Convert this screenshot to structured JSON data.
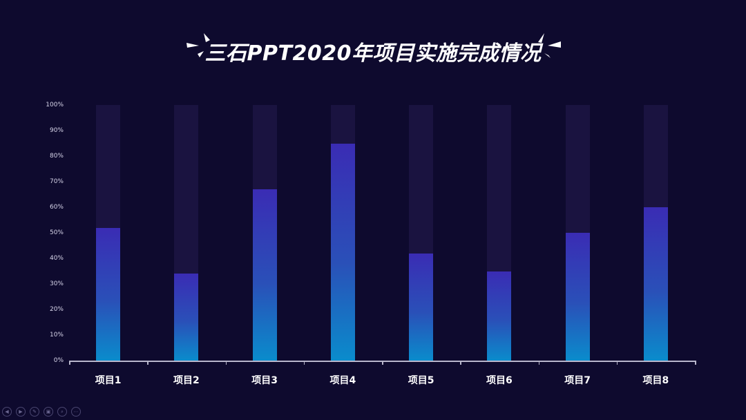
{
  "title": "三石PPT2020年项目实施完成情况",
  "chart_data": {
    "type": "bar",
    "title": "三石PPT2020年项目实施完成情况",
    "categories": [
      "项目1",
      "项目2",
      "项目3",
      "项目4",
      "项目5",
      "项目6",
      "项目7",
      "项目8"
    ],
    "values": [
      52,
      34,
      67,
      85,
      42,
      35,
      50,
      60
    ],
    "xlabel": "",
    "ylabel": "",
    "ylim": [
      0,
      100
    ],
    "y_ticks": [
      "0%",
      "10%",
      "20%",
      "30%",
      "40%",
      "50%",
      "60%",
      "70%",
      "80%",
      "90%",
      "100%"
    ],
    "grid": false,
    "legend": null,
    "background_track_max": 100,
    "colors": {
      "background": "#0e0a2e",
      "track": "#1a1340",
      "bar_gradient_bottom": "#0a8ccc",
      "bar_gradient_top": "#3a2cb4",
      "axis": "#b9b7cc"
    }
  },
  "controls": {
    "prev": "◀",
    "next": "▶",
    "pen": "✎",
    "slides": "▣",
    "zoom": "⌕",
    "more": "⋯"
  }
}
